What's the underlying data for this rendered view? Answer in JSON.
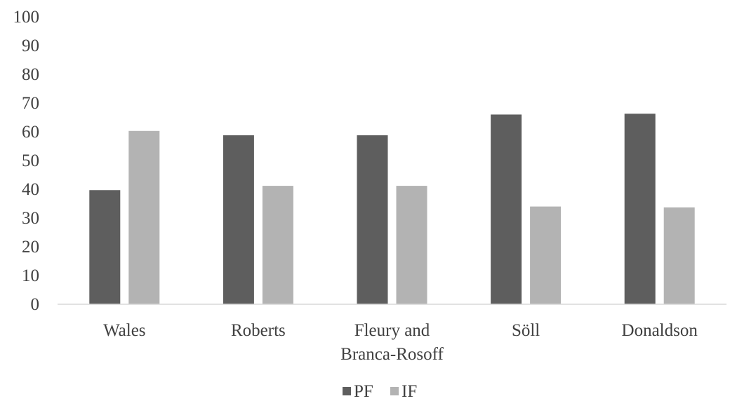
{
  "chart_data": {
    "type": "bar",
    "categories": [
      [
        "Wales"
      ],
      [
        "Roberts"
      ],
      [
        "Fleury and",
        "Branca-Rosoff"
      ],
      [
        "Söll"
      ],
      [
        "Donaldson"
      ]
    ],
    "series": [
      {
        "name": "PF",
        "color": "#5e5e5e",
        "values": [
          39.7,
          58.8,
          58.8,
          66.0,
          66.3
        ]
      },
      {
        "name": "IF",
        "color": "#b3b3b3",
        "values": [
          60.3,
          41.2,
          41.2,
          34.0,
          33.7
        ]
      }
    ],
    "ylim": [
      0,
      100
    ],
    "yticks": [
      "0",
      "10",
      "20",
      "30",
      "40",
      "50",
      "60",
      "70",
      "80",
      "90",
      "100"
    ],
    "grid": false,
    "legend_position": "bottom-center"
  }
}
